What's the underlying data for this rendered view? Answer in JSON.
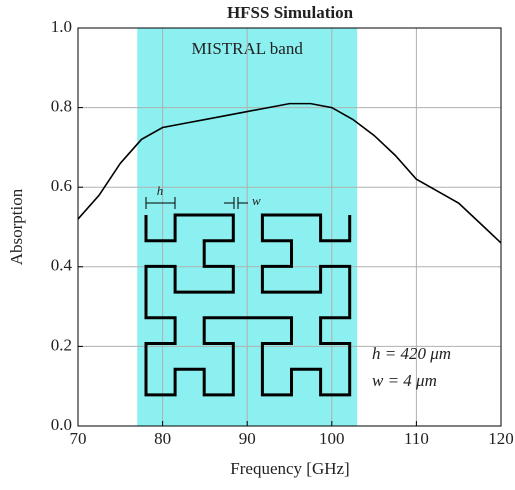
{
  "chart_data": {
    "type": "line",
    "title": "HFSS Simulation",
    "x_label": "Frequency [GHz]",
    "y_label": "Absorption",
    "x": [
      70,
      72.5,
      75,
      77.5,
      80,
      82.5,
      85,
      87.5,
      90,
      92.5,
      95,
      97.5,
      100,
      102.5,
      105,
      107.5,
      110,
      112.5,
      115,
      117.5,
      120
    ],
    "series": [
      {
        "color": "#000000",
        "values": [
          0.52,
          0.58,
          0.66,
          0.72,
          0.75,
          0.76,
          0.77,
          0.78,
          0.79,
          0.8,
          0.81,
          0.81,
          0.8,
          0.77,
          0.73,
          0.68,
          0.62,
          0.59,
          0.56,
          0.51,
          0.46
        ]
      }
    ],
    "band": {
      "label": "MISTRAL band",
      "range": [
        77,
        103
      ],
      "color": "#8cf0f0"
    },
    "xlim": [
      70,
      120
    ],
    "ylim": [
      0,
      1
    ],
    "xticks": [
      70,
      80,
      90,
      100,
      110,
      120
    ],
    "yticks": [
      {
        "value": 0,
        "label": "0.0"
      },
      0.2,
      0.4,
      0.6,
      0.8,
      {
        "value": 1,
        "label": "1.0"
      }
    ],
    "grid": true,
    "annotations": [
      "h",
      "w",
      "h = 420 μm",
      "w = 4 μm"
    ]
  }
}
